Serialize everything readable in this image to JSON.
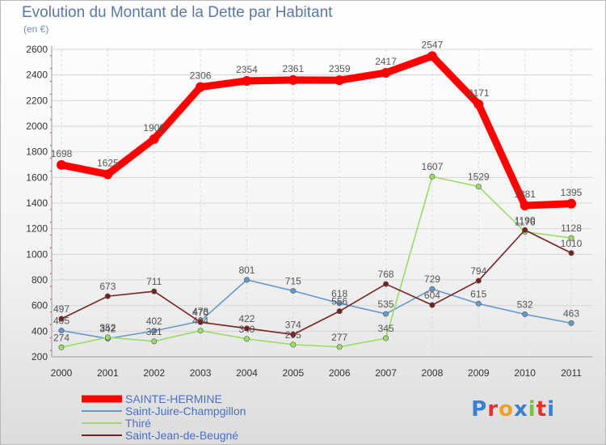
{
  "chart_data": {
    "type": "line",
    "title": "Evolution du Montant de la Dette par Habitant",
    "subtitle": "(en €)",
    "categories": [
      "2000",
      "2001",
      "2002",
      "2003",
      "2004",
      "2005",
      "2006",
      "2007",
      "2008",
      "2009",
      "2010",
      "2011"
    ],
    "ylim": [
      200,
      2600
    ],
    "yticks": [
      "200",
      "400",
      "600",
      "800",
      "1000",
      "1200",
      "1400",
      "1600",
      "1800",
      "2000",
      "2200",
      "2400",
      "2600"
    ],
    "grid": true,
    "legend_position": "bottom-left",
    "series": [
      {
        "name": "SAINTE-HERMINE",
        "color": "#ff0000",
        "values": [
          1698,
          1625,
          1900,
          2306,
          2354,
          2361,
          2359,
          2417,
          2547,
          2171,
          1381,
          1395
        ]
      },
      {
        "name": "Saint-Juire-Champgillon",
        "color": "#6699cc",
        "values": [
          405,
          342,
          402,
          478,
          801,
          715,
          618,
          535,
          729,
          615,
          532,
          463
        ]
      },
      {
        "name": "Thiré",
        "color": "#99dd66",
        "values": [
          274,
          352,
          321,
          404,
          340,
          295,
          277,
          345,
          1607,
          1529,
          1176,
          1128
        ]
      },
      {
        "name": "Saint-Jean-de-Beugné",
        "color": "#772222",
        "values": [
          497,
          673,
          711,
          470,
          422,
          374,
          556,
          768,
          604,
          794,
          1190,
          1010
        ]
      }
    ]
  },
  "logo": {
    "text": "Proxiti",
    "letter_colors": [
      "#3a7fd0",
      "#e8302a",
      "#f0a020",
      "#3a7fd0",
      "#7cc043",
      "#e8302a",
      "#3a7fd0"
    ]
  }
}
